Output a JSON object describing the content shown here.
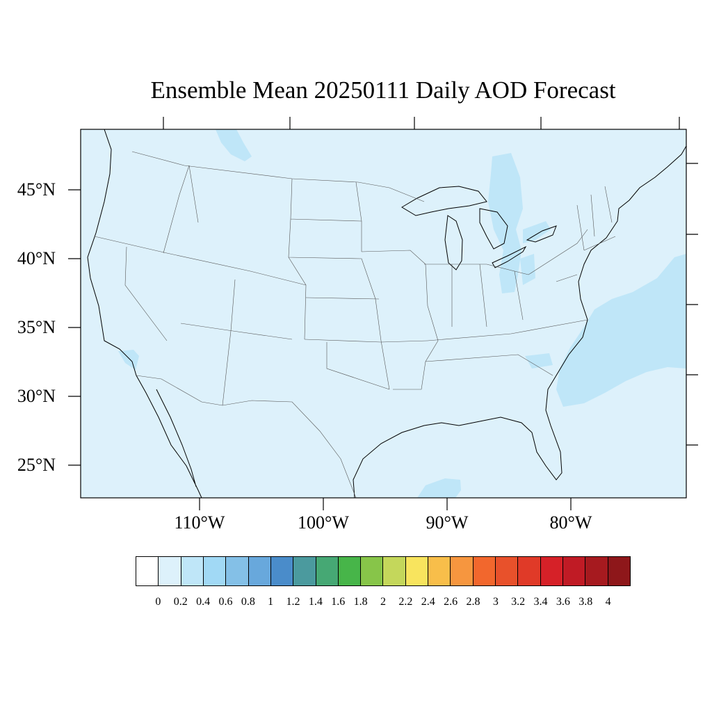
{
  "title": "Ensemble Mean 20250111 Daily AOD Forecast",
  "map": {
    "background_color": "#ddf1fb",
    "plume_color": "#bfe6f8",
    "lat_labels": [
      "45°N",
      "40°N",
      "35°N",
      "30°N",
      "25°N"
    ],
    "lon_labels": [
      "110°W",
      "100°W",
      "90°W",
      "80°W"
    ]
  },
  "colorbar": {
    "colors": [
      "#ffffff",
      "#ddf1fb",
      "#bfe6f8",
      "#a1d9f5",
      "#84c0e7",
      "#68a8dc",
      "#4a8cca",
      "#4b9a9e",
      "#46a874",
      "#47b549",
      "#87c549",
      "#c4d75b",
      "#f8e45e",
      "#f8be4a",
      "#f6963f",
      "#f2672d",
      "#e8512b",
      "#e03a28",
      "#d62128",
      "#c01b25",
      "#a61a1f",
      "#8e171a"
    ],
    "tick_labels": [
      "0",
      "0.2",
      "0.4",
      "0.6",
      "0.8",
      "1",
      "1.2",
      "1.4",
      "1.6",
      "1.8",
      "2",
      "2.2",
      "2.4",
      "2.6",
      "2.8",
      "3",
      "3.2",
      "3.4",
      "3.6",
      "3.8",
      "4"
    ]
  }
}
